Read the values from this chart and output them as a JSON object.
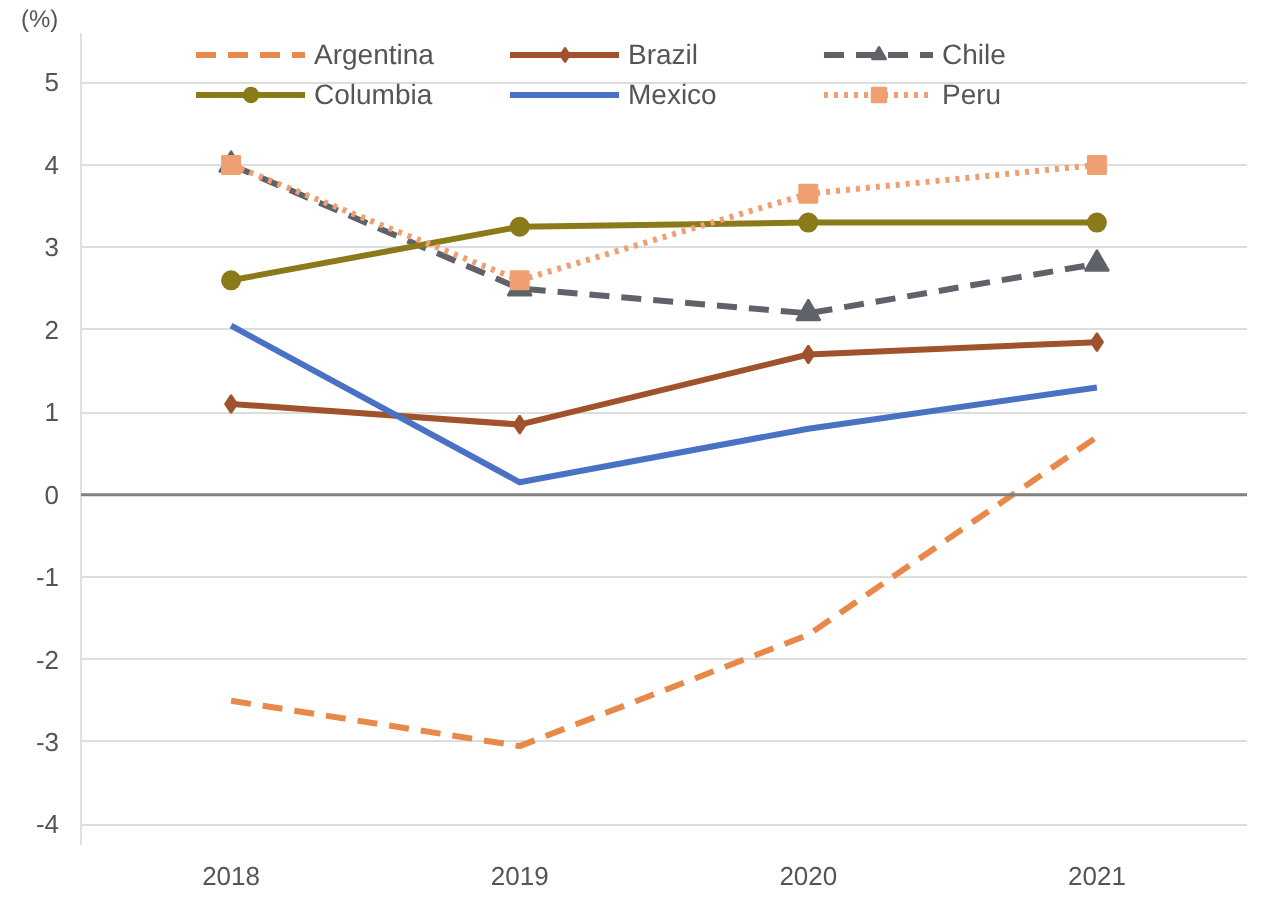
{
  "chart_data": {
    "type": "line",
    "ylabel": "(%)",
    "categories": [
      "2018",
      "2019",
      "2020",
      "2021"
    ],
    "series": [
      {
        "name": "Argentina",
        "color": "#e8894a",
        "values": [
          -2.5,
          -3.05,
          -1.7,
          0.7
        ],
        "line_style": "dashed",
        "marker": "none"
      },
      {
        "name": "Brazil",
        "color": "#a0522d",
        "values": [
          1.1,
          0.85,
          1.7,
          1.85
        ],
        "line_style": "solid",
        "marker": "diamond"
      },
      {
        "name": "Chile",
        "color": "#5f6369",
        "values": [
          4.0,
          2.5,
          2.2,
          2.8
        ],
        "line_style": "dashed",
        "marker": "triangle"
      },
      {
        "name": "Columbia",
        "color": "#8b7a1a",
        "values": [
          2.6,
          3.25,
          3.3,
          3.3
        ],
        "line_style": "solid",
        "marker": "circle"
      },
      {
        "name": "Mexico",
        "color": "#4a72c4",
        "values": [
          2.05,
          0.15,
          0.8,
          1.3
        ],
        "line_style": "solid",
        "marker": "none"
      },
      {
        "name": "Peru",
        "color": "#f0a070",
        "values": [
          4.0,
          2.6,
          3.65,
          4.0
        ],
        "line_style": "dotted",
        "marker": "square"
      }
    ],
    "ylim": [
      -4.25,
      5.6
    ],
    "yticks": [
      -4,
      -3,
      -2,
      -1,
      0,
      1,
      2,
      3,
      4,
      5
    ],
    "ref_lines": [
      {
        "axis": "y",
        "value": 0,
        "color": "#808080"
      }
    ],
    "grid": "y",
    "legend": "top"
  }
}
